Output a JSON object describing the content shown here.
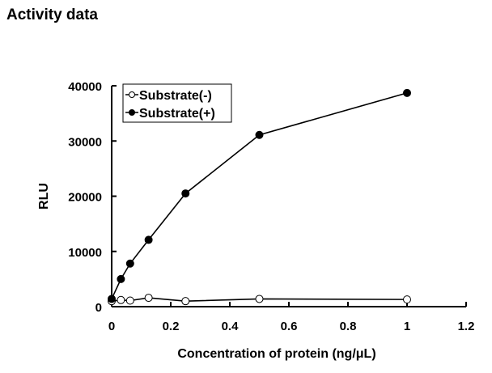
{
  "page_title": "Activity data",
  "chart_data": {
    "type": "line",
    "title": "Activity data",
    "xlabel": "Concentration of protein (ng/μL)",
    "ylabel": "RLU",
    "xlim": [
      0,
      1.2
    ],
    "ylim": [
      0,
      40000
    ],
    "xticks": [
      0,
      0.2,
      0.4,
      0.6,
      0.8,
      1,
      1.2
    ],
    "xtick_labels": [
      "0",
      "0.2",
      "0.4",
      "0.6",
      "0.8",
      "1",
      "1.2"
    ],
    "yticks": [
      0,
      10000,
      20000,
      30000,
      40000
    ],
    "ytick_labels": [
      "0",
      "10000",
      "20000",
      "30000",
      "40000"
    ],
    "grid": false,
    "legend_position": "top-left",
    "x": [
      0,
      0.03125,
      0.0625,
      0.125,
      0.25,
      0.5,
      1
    ],
    "series": [
      {
        "name": "Substrate(-)",
        "marker": "open-circle",
        "values": [
          1000,
          1200,
          1100,
          1600,
          1000,
          1400,
          1300
        ]
      },
      {
        "name": "Substrate(+)",
        "marker": "filled-circle",
        "values": [
          1400,
          5000,
          7800,
          12100,
          20500,
          31100,
          38700
        ]
      }
    ]
  }
}
